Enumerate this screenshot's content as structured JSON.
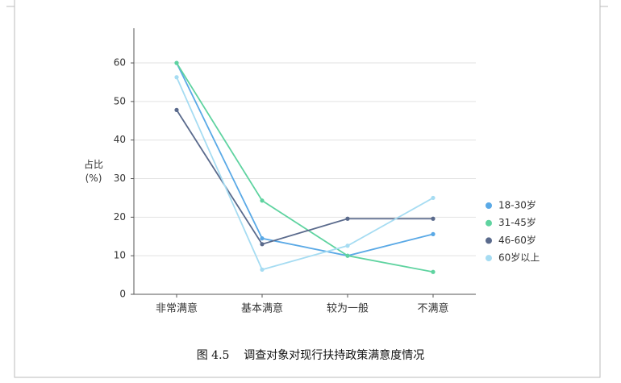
{
  "chart_data": {
    "type": "line",
    "caption": "图 4.5    调查对象对现行扶持政策满意度情况",
    "y_label": "占比(%)",
    "categories": [
      "非常满意",
      "基本满意",
      "较为一般",
      "不满意"
    ],
    "series": [
      {
        "name": "18-30岁",
        "color": "#5aa9e6",
        "values": [
          60,
          14.5,
          10,
          15.6
        ]
      },
      {
        "name": "31-45岁",
        "color": "#5fd3a0",
        "values": [
          60,
          24.3,
          10,
          5.8
        ]
      },
      {
        "name": "46-60岁",
        "color": "#5a6a8c",
        "values": [
          47.8,
          13,
          19.6,
          19.6
        ]
      },
      {
        "name": "60岁以上",
        "color": "#a6dcf2",
        "values": [
          56.3,
          6.4,
          12.6,
          25
        ]
      }
    ],
    "ylim": [
      0,
      69
    ],
    "yticks": [
      0,
      10,
      20,
      30,
      40,
      50,
      60
    ],
    "grid": true,
    "legend": "right"
  }
}
